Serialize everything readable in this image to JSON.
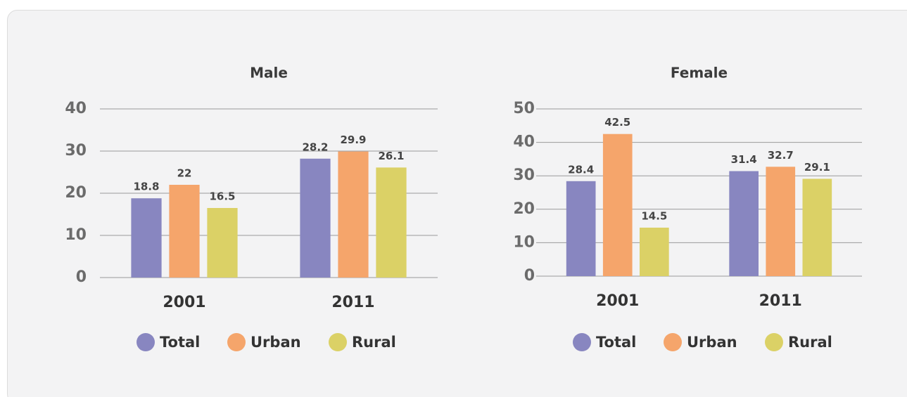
{
  "chart_data": [
    {
      "type": "bar",
      "title": "Male",
      "categories": [
        "2001",
        "2011"
      ],
      "series": [
        {
          "name": "Total",
          "color": "#8886c0",
          "values": [
            18.8,
            28.2
          ]
        },
        {
          "name": "Urban",
          "color": "#f5a56b",
          "values": [
            22,
            29.9
          ]
        },
        {
          "name": "Rural",
          "color": "#dbd166",
          "values": [
            16.5,
            26.1
          ]
        }
      ],
      "ylim": [
        0,
        40
      ],
      "yticks": [
        0,
        10,
        20,
        30,
        40
      ],
      "grid": true
    },
    {
      "type": "bar",
      "title": "Female",
      "categories": [
        "2001",
        "2011"
      ],
      "series": [
        {
          "name": "Total",
          "color": "#8886c0",
          "values": [
            28.4,
            31.4
          ]
        },
        {
          "name": "Urban",
          "color": "#f5a56b",
          "values": [
            42.5,
            32.7
          ]
        },
        {
          "name": "Rural",
          "color": "#dbd166",
          "values": [
            14.5,
            29.1
          ]
        }
      ],
      "ylim": [
        0,
        50
      ],
      "yticks": [
        0,
        10,
        20,
        30,
        40,
        50
      ],
      "grid": true
    }
  ]
}
